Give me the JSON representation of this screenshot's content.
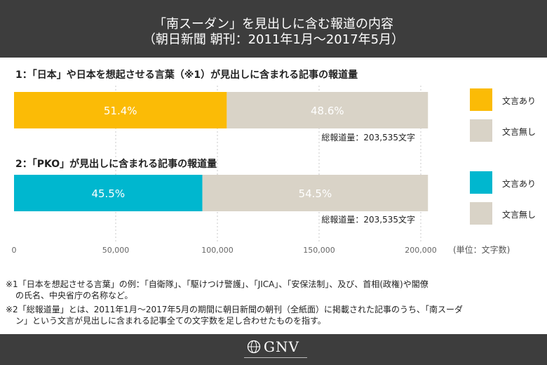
{
  "header": {
    "title_line1": "「南スーダン」を見出しに含む報道の内容",
    "title_line2": "（朝日新聞 朝刊：2011年1月〜2017年5月）"
  },
  "colors": {
    "header_bg": "#3d3d3d",
    "yellow": "#fbbb06",
    "cyan": "#00b7cf",
    "gray": "#d9d3c7"
  },
  "sections": [
    {
      "title": "1：「日本」や日本を想起させる言葉（※1）が見出しに含まれる記事の報道量",
      "total": "総報道量：203,535文字",
      "legend": [
        {
          "label": "文言あり",
          "color": "#fbbb06"
        },
        {
          "label": "文言無し",
          "color": "#d9d3c7"
        }
      ]
    },
    {
      "title": "2：「PKO」が見出しに含まれる記事の報道量",
      "total": "総報道量：203,535文字",
      "legend": [
        {
          "label": "文言あり",
          "color": "#00b7cf"
        },
        {
          "label": "文言無し",
          "color": "#d9d3c7"
        }
      ]
    }
  ],
  "unit_label": "(単位：文字数)",
  "notes": {
    "n1_line1": "※1「日本を想起させる言葉」の例：「自衛隊」、「駆けつけ警護」、「JICA」、「安保法制」、及び、首相(政権)や閣僚",
    "n1_line2": "の氏名、中央省庁の名称など。",
    "n2_line1": "※2「総報道量」とは、2011年1月〜2017年5月の期間に朝日新聞の朝刊（全紙面）に掲載された記事のうち、「南スーダ",
    "n2_line2": "ン」という文言が見出しに含まれる記事全ての文字数を足し合わせたものを指す。"
  },
  "footer": {
    "logo_text": "GNV"
  },
  "chart_data": {
    "type": "bar",
    "orientation": "horizontal",
    "stacked": true,
    "xlim": [
      0,
      210000
    ],
    "x_ticks": [
      0,
      50000,
      100000,
      150000,
      200000
    ],
    "x_tick_labels": [
      "0",
      "50,000",
      "100,000",
      "150,000",
      "200,000"
    ],
    "grid": true,
    "bars": [
      {
        "segments": [
          {
            "value": 104617,
            "label": "51.4%",
            "color": "#fbbb06",
            "legend": "文言あり"
          },
          {
            "value": 98918,
            "label": "48.6%",
            "color": "#d9d3c7",
            "legend": "文言無し"
          }
        ]
      },
      {
        "segments": [
          {
            "value": 92608,
            "label": "45.5%",
            "color": "#00b7cf",
            "legend": "文言あり"
          },
          {
            "value": 110927,
            "label": "54.5%",
            "color": "#d9d3c7",
            "legend": "文言無し"
          }
        ]
      }
    ]
  }
}
